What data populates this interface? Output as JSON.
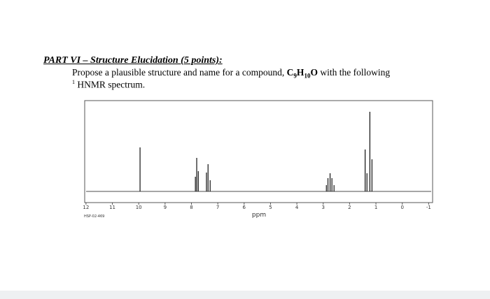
{
  "heading": "PART VI – Structure Elucidation  (5 points):",
  "question": {
    "intro": "Propose a plausible structure and name for a compound, ",
    "formula": [
      {
        "text": "C",
        "sub": false
      },
      {
        "text": "9",
        "sub": true
      },
      {
        "text": "H",
        "sub": false
      },
      {
        "text": "10",
        "sub": true
      },
      {
        "text": "O",
        "sub": false
      }
    ],
    "outro": " with the following",
    "superscript": "1",
    "line2": " HNMR spectrum."
  },
  "chart_data": {
    "type": "spectrum",
    "x_label": "ppm",
    "sample_label": "HSP-02-469",
    "xlim": [
      12.05,
      -1.15
    ],
    "ylim": [
      0,
      130
    ],
    "xticks": [
      12,
      11,
      10,
      9,
      8,
      7,
      6,
      5,
      4,
      3,
      2,
      1,
      0,
      -1
    ],
    "color": "#111111",
    "peaks": {
      "x": [
        9.95,
        7.85,
        7.8,
        7.74,
        7.43,
        7.37,
        7.29,
        2.88,
        2.82,
        2.74,
        2.67,
        2.59,
        1.41,
        1.34,
        1.23,
        1.15
      ],
      "values": [
        63,
        21,
        48,
        29,
        27,
        39,
        16,
        9,
        19,
        26,
        19,
        9,
        60,
        26,
        114,
        46
      ]
    }
  }
}
